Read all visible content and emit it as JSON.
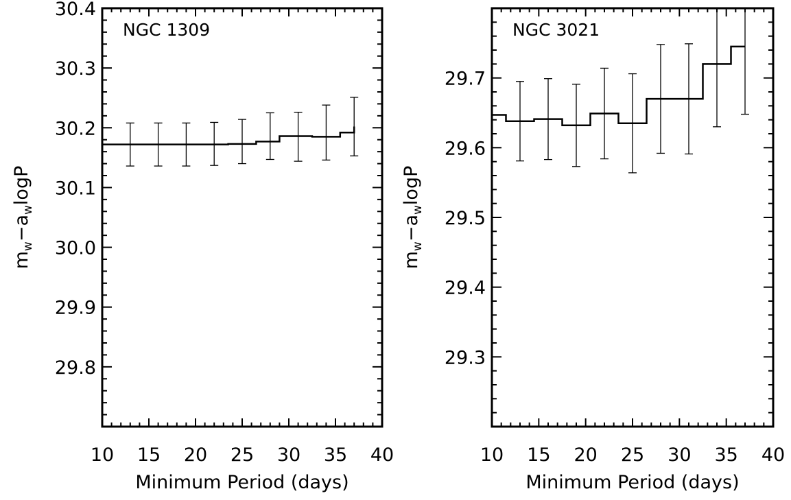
{
  "chart_data": [
    {
      "type": "line",
      "annotation": "NGC 1309",
      "xlabel": "Minimum Period (days)",
      "ylabel": {
        "m": "m",
        "w1": "w",
        "minus": "−a",
        "w2": "w",
        "rest": "logP"
      },
      "xlim": [
        10,
        40
      ],
      "ylim": [
        29.7,
        30.4
      ],
      "xticks": [
        10,
        15,
        20,
        25,
        30,
        35,
        40
      ],
      "yticks": [
        29.8,
        29.9,
        30.0,
        30.1,
        30.2,
        30.3,
        30.4
      ],
      "ytick_labels": [
        "29.8",
        "29.9",
        "30.0",
        "30.1",
        "30.2",
        "30.3",
        "30.4"
      ],
      "x": [
        13,
        16,
        19,
        22,
        25,
        28,
        31,
        34,
        37
      ],
      "y": [
        30.172,
        30.172,
        30.172,
        30.173,
        30.177,
        30.186,
        30.185,
        30.192,
        30.202
      ],
      "yerr": [
        0.036,
        0.036,
        0.036,
        0.036,
        0.037,
        0.039,
        0.041,
        0.046,
        0.049
      ],
      "step_start": 10,
      "step_values": [
        30.172,
        30.173,
        30.177,
        30.186,
        30.185,
        30.192,
        30.202
      ],
      "step_edges": [
        10,
        23.5,
        26.5,
        29,
        32.5,
        35.5,
        37
      ]
    },
    {
      "type": "line",
      "annotation": "NGC 3021",
      "xlabel": "Minimum Period (days)",
      "ylabel": {
        "m": "m",
        "w1": "w",
        "minus": "−a",
        "w2": "w",
        "rest": "logP"
      },
      "xlim": [
        10,
        40
      ],
      "ylim": [
        29.2,
        29.8
      ],
      "xticks": [
        10,
        15,
        20,
        25,
        30,
        35,
        40
      ],
      "yticks": [
        29.3,
        29.4,
        29.5,
        29.6,
        29.7
      ],
      "ytick_labels": [
        "29.3",
        "29.4",
        "29.5",
        "29.6",
        "29.7"
      ],
      "x": [
        13,
        16,
        19,
        22,
        25,
        28,
        31,
        34,
        37
      ],
      "y": [
        29.638,
        29.641,
        29.632,
        29.649,
        29.635,
        29.67,
        29.67,
        29.72,
        29.745
      ],
      "yerr": [
        0.057,
        0.058,
        0.059,
        0.065,
        0.071,
        0.078,
        0.079,
        0.09,
        0.097
      ],
      "step_values": [
        29.647,
        29.638,
        29.641,
        29.632,
        29.649,
        29.635,
        29.67,
        29.72,
        29.745
      ],
      "step_edges": [
        10,
        11.5,
        14.5,
        17.5,
        20.5,
        23.5,
        26.5,
        32.5,
        35.5,
        37
      ]
    }
  ]
}
